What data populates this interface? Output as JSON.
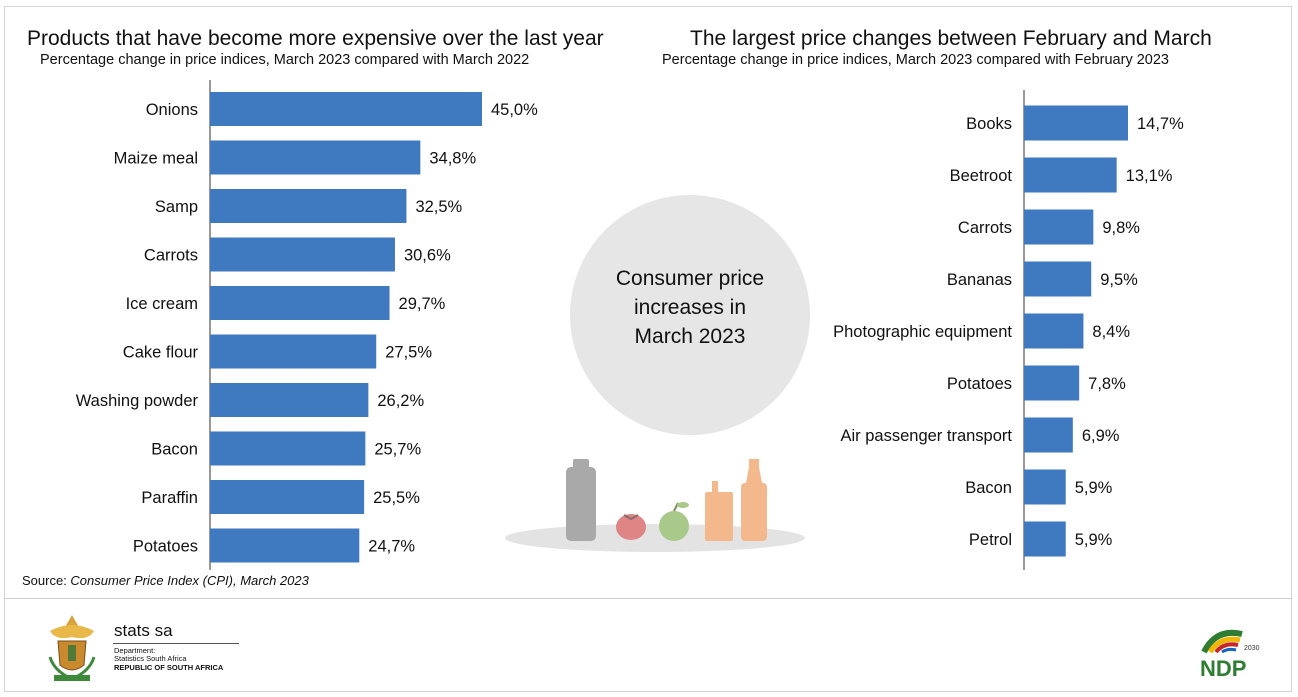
{
  "left_chart_title": "Products that have become more expensive over the last year",
  "left_chart_subtitle": "Percentage change in price indices, March 2023 compared with March 2022",
  "right_chart_title": "The largest price changes between February and March",
  "right_chart_subtitle": "Percentage change in price indices, March 2023 compared with February 2023",
  "center": {
    "line1": "Consumer price",
    "line2": "increases in",
    "line3": "March 2023"
  },
  "source": {
    "prefix": "Source: ",
    "text": "Consumer Price Index (CPI), March 2023"
  },
  "logo": {
    "name": "stats sa",
    "dept_line1": "Department:",
    "dept_line2": "Statistics South Africa",
    "dept_line3": "REPUBLIC OF SOUTH AFRICA",
    "ndp_text": "NDP",
    "ndp_year": "2030"
  },
  "colors": {
    "bar": "#3f79c0",
    "circle": "#e6e6e6"
  },
  "chart_data": [
    {
      "type": "bar",
      "orientation": "horizontal",
      "title": "Products that have become more expensive over the last year",
      "subtitle": "Percentage change in price indices, March 2023 compared with March 2022",
      "categories": [
        "Onions",
        "Maize meal",
        "Samp",
        "Carrots",
        "Ice cream",
        "Cake flour",
        "Washing powder",
        "Bacon",
        "Paraffin",
        "Potatoes"
      ],
      "values": [
        45.0,
        34.8,
        32.5,
        30.6,
        29.7,
        27.5,
        26.2,
        25.7,
        25.5,
        24.7
      ],
      "value_labels": [
        "45,0%",
        "34,8%",
        "32,5%",
        "30,6%",
        "29,7%",
        "27,5%",
        "26,2%",
        "25,7%",
        "25,5%",
        "24,7%"
      ],
      "xlim": [
        0,
        45.0
      ]
    },
    {
      "type": "bar",
      "orientation": "horizontal",
      "title": "The largest price changes between February and March",
      "subtitle": "Percentage change in price indices, March 2023 compared with February 2023",
      "categories": [
        "Books",
        "Beetroot",
        "Carrots",
        "Bananas",
        "Photographic equipment",
        "Potatoes",
        "Air passenger transport",
        "Bacon",
        "Petrol"
      ],
      "values": [
        14.7,
        13.1,
        9.8,
        9.5,
        8.4,
        7.8,
        6.9,
        5.9,
        5.9
      ],
      "value_labels": [
        "14,7%",
        "13,1%",
        "9,8%",
        "9,5%",
        "8,4%",
        "7,8%",
        "6,9%",
        "5,9%",
        "5,9%"
      ],
      "xlim": [
        0,
        14.7
      ]
    }
  ]
}
